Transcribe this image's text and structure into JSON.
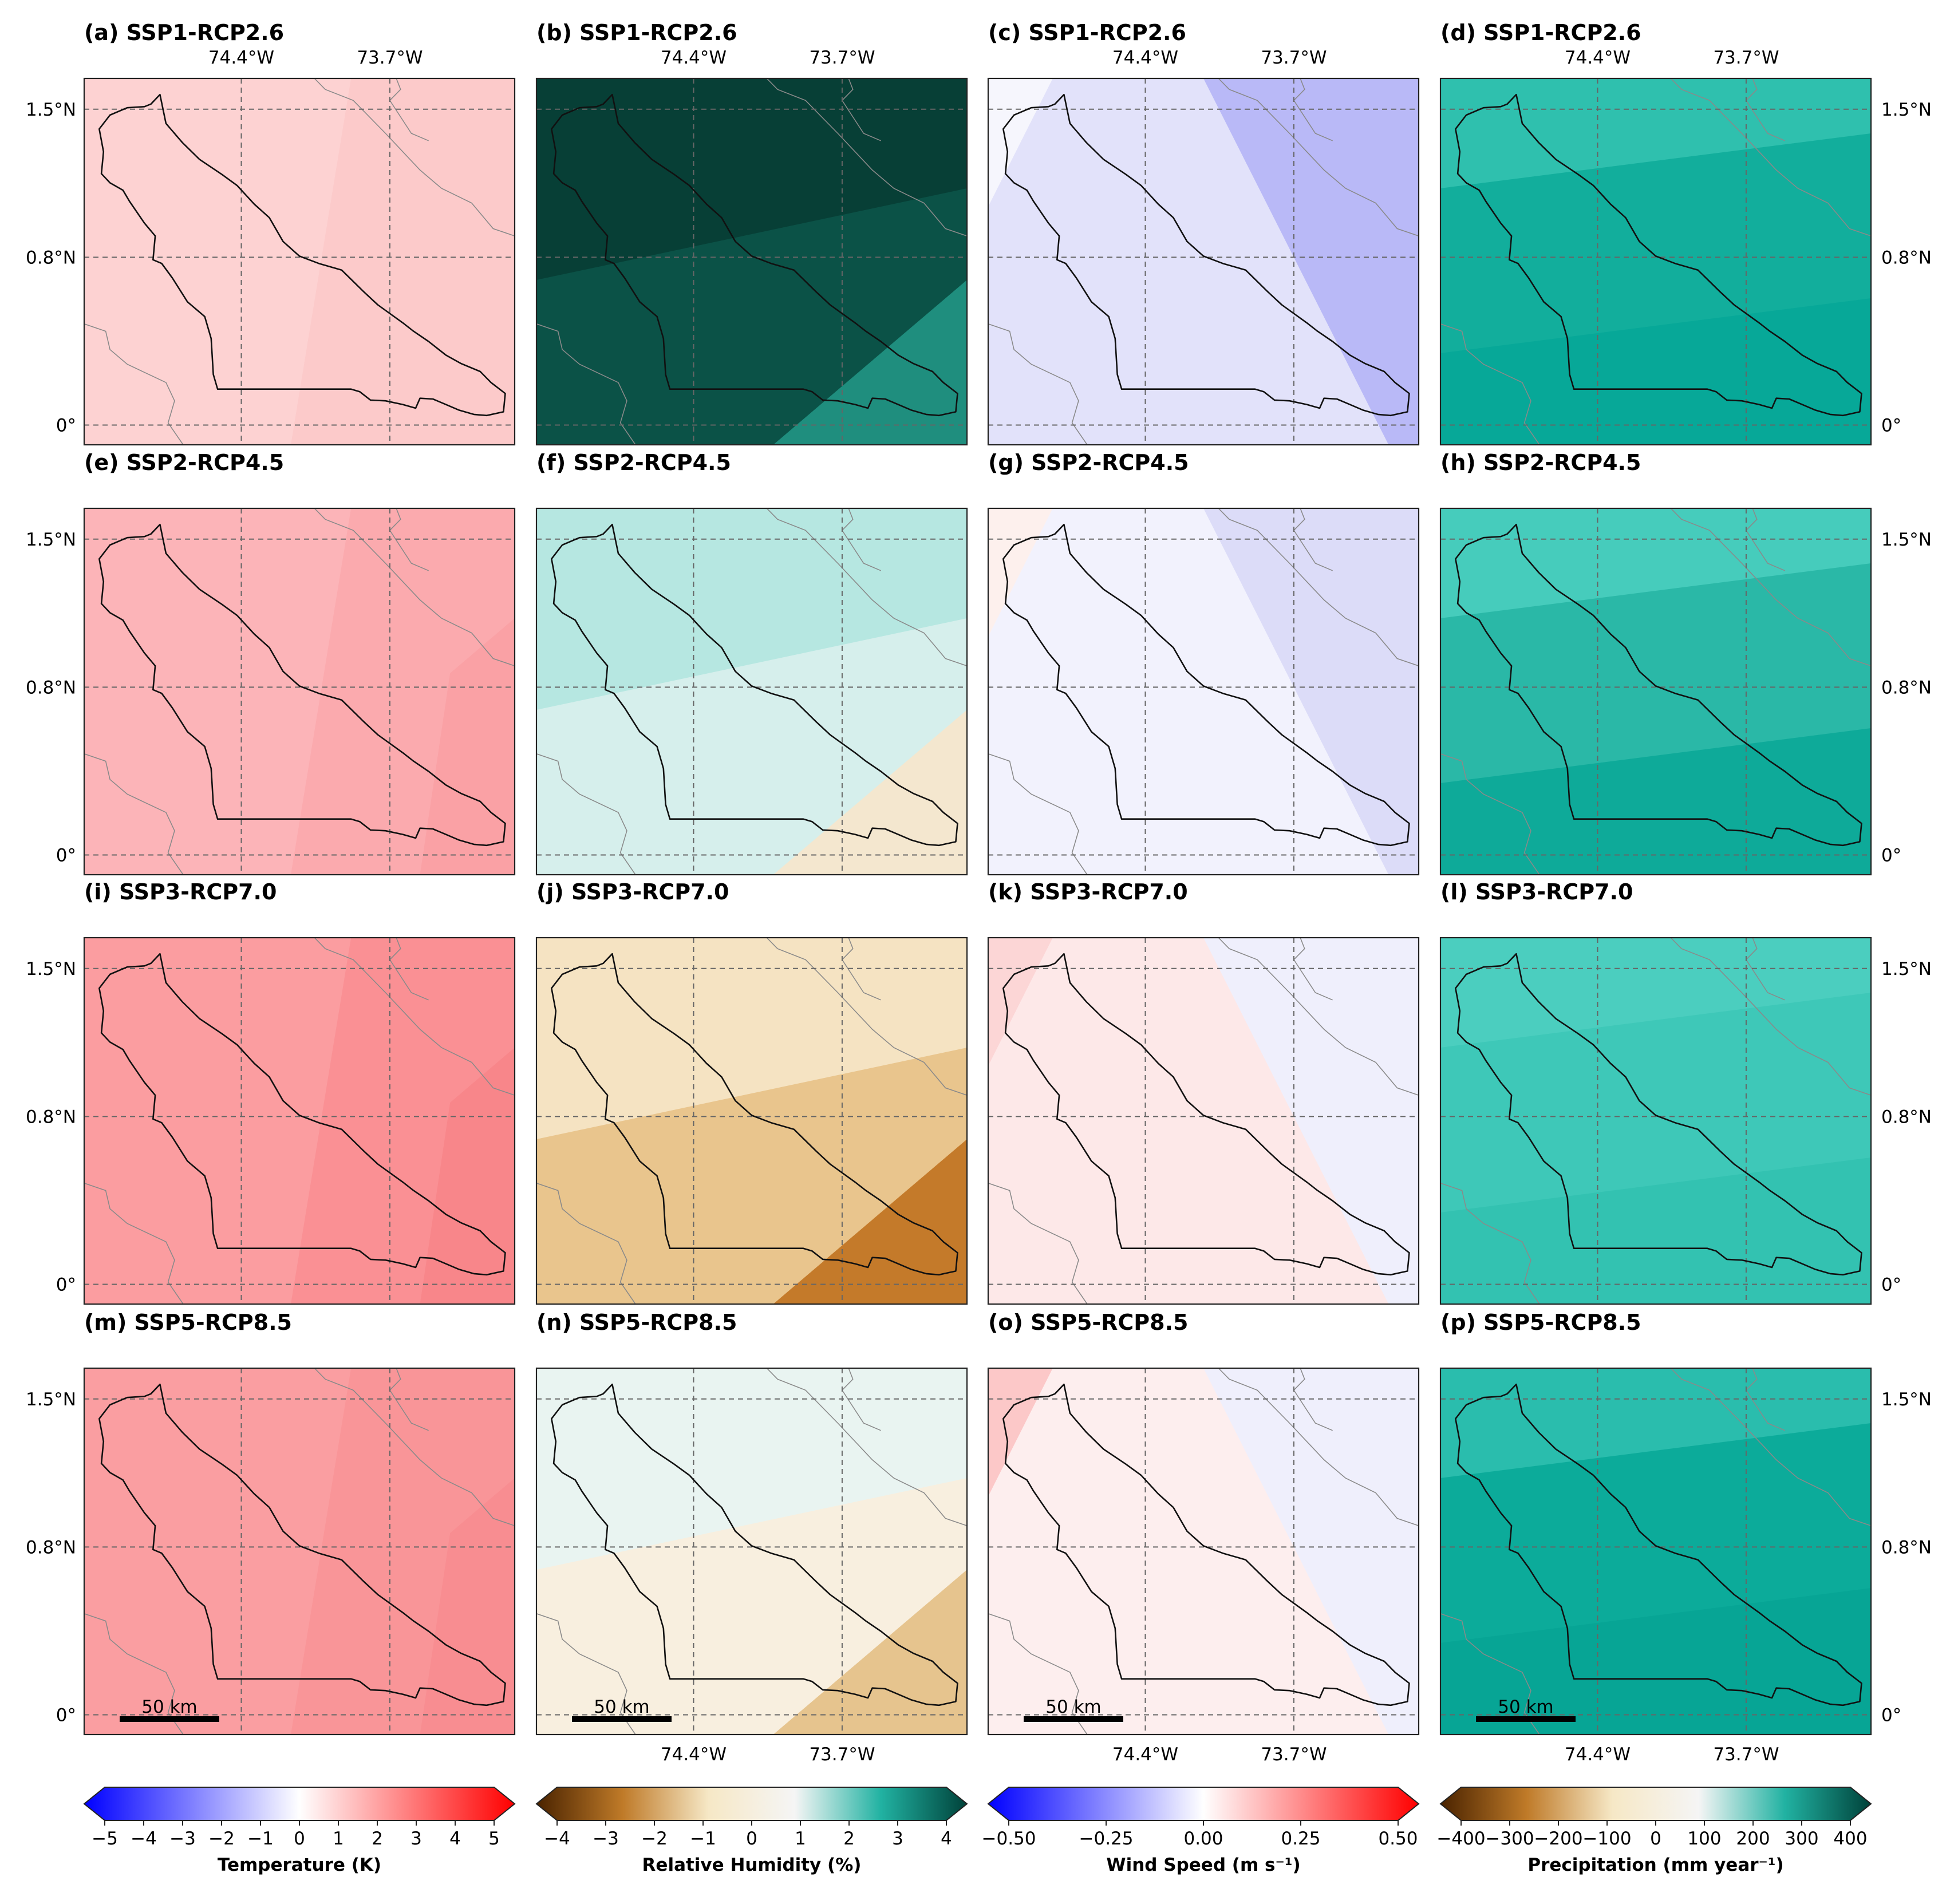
{
  "figure": {
    "rows": [
      {
        "scenario": "SSP1-RCP2.6"
      },
      {
        "scenario": "SSP2-RCP4.5"
      },
      {
        "scenario": "SSP3-RCP7.0"
      },
      {
        "scenario": "SSP5-RCP8.5"
      }
    ],
    "panels": [
      {
        "label": "(a) SSP1-RCP2.6",
        "variable": "temperature",
        "shades": [
          "#fdd2d2",
          "#fccaca",
          "#fccaca"
        ]
      },
      {
        "label": "(b) SSP1-RCP2.6",
        "variable": "humidity",
        "shades": [
          "#073f36",
          "#0b5247",
          "#1f8e7e"
        ]
      },
      {
        "label": "(c) SSP1-RCP2.6",
        "variable": "wind",
        "shades": [
          "#f6f6fd",
          "#e2e2fa",
          "#b9b9f7"
        ]
      },
      {
        "label": "(d) SSP1-RCP2.6",
        "variable": "precip",
        "shades": [
          "#2fc0ae",
          "#12ae9c",
          "#07a898"
        ]
      },
      {
        "label": "(e) SSP2-RCP4.5",
        "variable": "temperature",
        "shades": [
          "#fcb4b8",
          "#fbaaae",
          "#faa1a5"
        ]
      },
      {
        "label": "(f) SSP2-RCP4.5",
        "variable": "humidity",
        "shades": [
          "#b6e7e1",
          "#d6efec",
          "#f4e7cf"
        ]
      },
      {
        "label": "(g) SSP2-RCP4.5",
        "variable": "wind",
        "shades": [
          "#fdf0ed",
          "#f2f2fd",
          "#dcdcf8"
        ]
      },
      {
        "label": "(h) SSP2-RCP4.5",
        "variable": "precip",
        "shades": [
          "#46ccbc",
          "#2ab8a7",
          "#0eaa99"
        ]
      },
      {
        "label": "(i) SSP3-RCP7.0",
        "variable": "temperature",
        "shades": [
          "#fb9da0",
          "#fa9094",
          "#f8868a"
        ]
      },
      {
        "label": "(j) SSP3-RCP7.0",
        "variable": "humidity",
        "shades": [
          "#f5e3c2",
          "#e9c58d",
          "#c47a2a"
        ]
      },
      {
        "label": "(k) SSP3-RCP7.0",
        "variable": "wind",
        "shades": [
          "#fcd6d6",
          "#fde8e8",
          "#efeffc"
        ]
      },
      {
        "label": "(l) SSP3-RCP7.0",
        "variable": "precip",
        "shades": [
          "#4bcebf",
          "#3ec8b8",
          "#33c2b1"
        ]
      },
      {
        "label": "(m) SSP5-RCP8.5",
        "variable": "temperature",
        "shades": [
          "#fa9ea1",
          "#f99598",
          "#f88d91"
        ]
      },
      {
        "label": "(n) SSP5-RCP8.5",
        "variable": "humidity",
        "shades": [
          "#e9f4f1",
          "#f8efdf",
          "#e6c48e"
        ]
      },
      {
        "label": "(o) SSP5-RCP8.5",
        "variable": "wind",
        "shades": [
          "#fcc8c8",
          "#fdeeee",
          "#efeffc"
        ]
      },
      {
        "label": "(p) SSP5-RCP8.5",
        "variable": "precip",
        "shades": [
          "#2abdad",
          "#0cab9a",
          "#07a595"
        ]
      }
    ],
    "axis_labels": {
      "lon_ticks": [
        "74.4°W",
        "73.7°W"
      ],
      "lat_ticks": [
        "1.5°N",
        "0.8°N",
        "0°"
      ]
    },
    "scale_bar": "50 km",
    "colorbars": [
      {
        "label": "Temperature (K)",
        "ticks": [
          "−5",
          "−4",
          "−3",
          "−2",
          "−1",
          "0",
          "1",
          "2",
          "3",
          "4",
          "5"
        ],
        "colors": [
          "#0000ff",
          "#ffffff",
          "#ff0000"
        ]
      },
      {
        "label": "Relative Humidity (%)",
        "ticks": [
          "−4",
          "−3",
          "−2",
          "−1",
          "0",
          "1",
          "2",
          "3",
          "4"
        ],
        "colors": [
          "#4a2300",
          "#bf7a28",
          "#f6e8c6",
          "#f5f5f5",
          "#21b2a2",
          "#00423a"
        ]
      },
      {
        "label": "Wind Speed (m s⁻¹)",
        "ticks": [
          "−0.50",
          "−0.25",
          "0.00",
          "0.25",
          "0.50"
        ],
        "colors": [
          "#0000ff",
          "#ffffff",
          "#ff0000"
        ]
      },
      {
        "label": "Precipitation (mm year⁻¹)",
        "ticks": [
          "−400",
          "−300",
          "−200",
          "−100",
          "0",
          "100",
          "200",
          "300",
          "400"
        ],
        "colors": [
          "#4a2300",
          "#bf7a28",
          "#f6e8c6",
          "#f5f5f5",
          "#21b2a2",
          "#00423a"
        ]
      }
    ]
  }
}
